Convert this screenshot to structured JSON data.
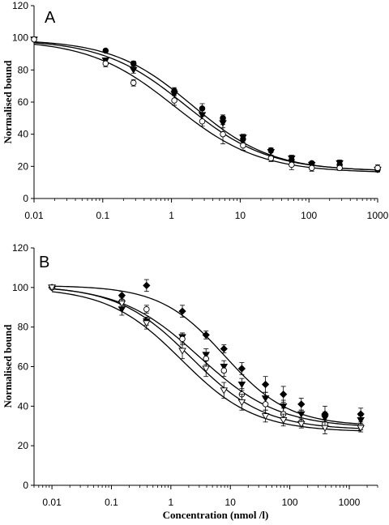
{
  "chart_data": [
    {
      "type": "scatter",
      "panel_label": "A",
      "title": "",
      "xlabel": "",
      "ylabel": "Normalised bound",
      "xscale": "log",
      "xlim": [
        0.01,
        1000
      ],
      "ylim": [
        0,
        120
      ],
      "xticks": [
        0.01,
        0.1,
        1,
        10,
        100,
        1000
      ],
      "xtick_labels": [
        "0.01",
        "0.1",
        "1",
        "10",
        "100",
        "1000"
      ],
      "yticks": [
        0,
        20,
        40,
        60,
        80,
        100,
        120
      ],
      "ytick_labels": [
        "0",
        "20",
        "40",
        "60",
        "80",
        "100",
        "120"
      ],
      "grid": false,
      "legend": "none",
      "series": [
        {
          "marker": "filled-circle",
          "x": [
            0.01,
            0.11,
            0.28,
            1.1,
            2.8,
            5.6,
            11,
            28,
            56,
            110,
            280,
            1000
          ],
          "y": [
            99,
            92,
            84,
            67,
            56,
            50,
            37,
            30,
            24,
            22,
            21,
            18
          ],
          "err": [
            0,
            1,
            1.5,
            2,
            3,
            2,
            2,
            1.5,
            1.5,
            1,
            1,
            1
          ],
          "fit": {
            "bottom": 17,
            "top": 99,
            "ec50": 2.0,
            "hill": 0.75
          }
        },
        {
          "marker": "filled-triangle-down",
          "x": [
            0.01,
            0.11,
            0.28,
            1.1,
            2.8,
            5.6,
            11,
            28,
            56,
            110,
            280,
            1000
          ],
          "y": [
            99,
            86,
            80,
            65,
            52,
            47,
            38,
            29,
            25,
            21,
            22,
            18
          ],
          "err": [
            0,
            1.5,
            2,
            3,
            4,
            3,
            2,
            2,
            2,
            1.5,
            2,
            1.5
          ],
          "fit": {
            "bottom": 17,
            "top": 99,
            "ec50": 1.6,
            "hill": 0.72
          }
        },
        {
          "marker": "open-circle",
          "x": [
            0.01,
            0.11,
            0.28,
            1.1,
            2.8,
            5.6,
            11,
            28,
            56,
            110,
            280,
            1000
          ],
          "y": [
            99,
            84,
            72,
            61,
            48,
            40,
            33,
            25,
            21,
            19,
            19,
            19
          ],
          "err": [
            0,
            2,
            2,
            3,
            3,
            6,
            3,
            2,
            3,
            2,
            1.5,
            2
          ],
          "fit": {
            "bottom": 16,
            "top": 99,
            "ec50": 1.1,
            "hill": 0.7
          }
        }
      ]
    },
    {
      "type": "scatter",
      "panel_label": "B",
      "title": "",
      "xlabel": "Concentration (nmol /l)",
      "ylabel": "Normalised bound",
      "xscale": "log",
      "xlim": [
        0.005,
        3000
      ],
      "ylim": [
        0,
        120
      ],
      "xticks": [
        0.01,
        0.1,
        1,
        10,
        100,
        1000
      ],
      "xtick_labels": [
        "0.01",
        "0.1",
        "1",
        "10",
        "100",
        "1000"
      ],
      "yticks": [
        0,
        20,
        40,
        60,
        80,
        100,
        120
      ],
      "ytick_labels": [
        "0",
        "20",
        "40",
        "60",
        "80",
        "100",
        "120"
      ],
      "grid": false,
      "legend": "none",
      "series": [
        {
          "marker": "filled-diamond",
          "x": [
            0.01,
            0.15,
            0.39,
            1.56,
            3.9,
            7.8,
            15.6,
            39,
            78,
            156,
            390,
            1560
          ],
          "y": [
            100,
            96,
            101,
            88,
            76,
            69,
            59,
            51,
            46,
            41,
            36,
            36
          ],
          "err": [
            0,
            2,
            3,
            3,
            2,
            2,
            3,
            4,
            4,
            3,
            4,
            3
          ],
          "fit": {
            "bottom": 30,
            "top": 101,
            "ec50": 8.0,
            "hill": 0.8
          }
        },
        {
          "marker": "filled-triangle-down",
          "x": [
            0.01,
            0.15,
            0.39,
            1.56,
            3.9,
            7.8,
            15.6,
            39,
            78,
            156,
            390,
            1560
          ],
          "y": [
            100,
            89,
            83,
            75,
            66,
            60,
            51,
            44,
            40,
            36,
            34,
            33
          ],
          "err": [
            0,
            3,
            2,
            2,
            3,
            3,
            3,
            3,
            3,
            2,
            3,
            2
          ],
          "fit": {
            "bottom": 29,
            "top": 101,
            "ec50": 3.0,
            "hill": 0.65
          }
        },
        {
          "marker": "open-circle",
          "x": [
            0.01,
            0.15,
            0.39,
            1.56,
            3.9,
            7.8,
            15.6,
            39,
            78,
            156,
            390,
            1560
          ],
          "y": [
            100,
            93,
            89,
            74,
            64,
            58,
            46,
            41,
            36,
            32,
            31,
            30
          ],
          "err": [
            0,
            2,
            2,
            3,
            3,
            3,
            3,
            3,
            3,
            2,
            2,
            2
          ],
          "fit": {
            "bottom": 28,
            "top": 101,
            "ec50": 2.2,
            "hill": 0.7
          }
        },
        {
          "marker": "open-triangle-down",
          "x": [
            0.01,
            0.15,
            0.39,
            1.56,
            3.9,
            7.8,
            15.6,
            39,
            78,
            156,
            390,
            1560
          ],
          "y": [
            100,
            92,
            82,
            68,
            59,
            48,
            42,
            35,
            33,
            31,
            29,
            29
          ],
          "err": [
            0,
            2,
            3,
            4,
            4,
            4,
            4,
            3,
            3,
            2,
            3,
            2
          ],
          "fit": {
            "bottom": 27,
            "top": 100,
            "ec50": 1.5,
            "hill": 0.7
          }
        }
      ]
    }
  ]
}
